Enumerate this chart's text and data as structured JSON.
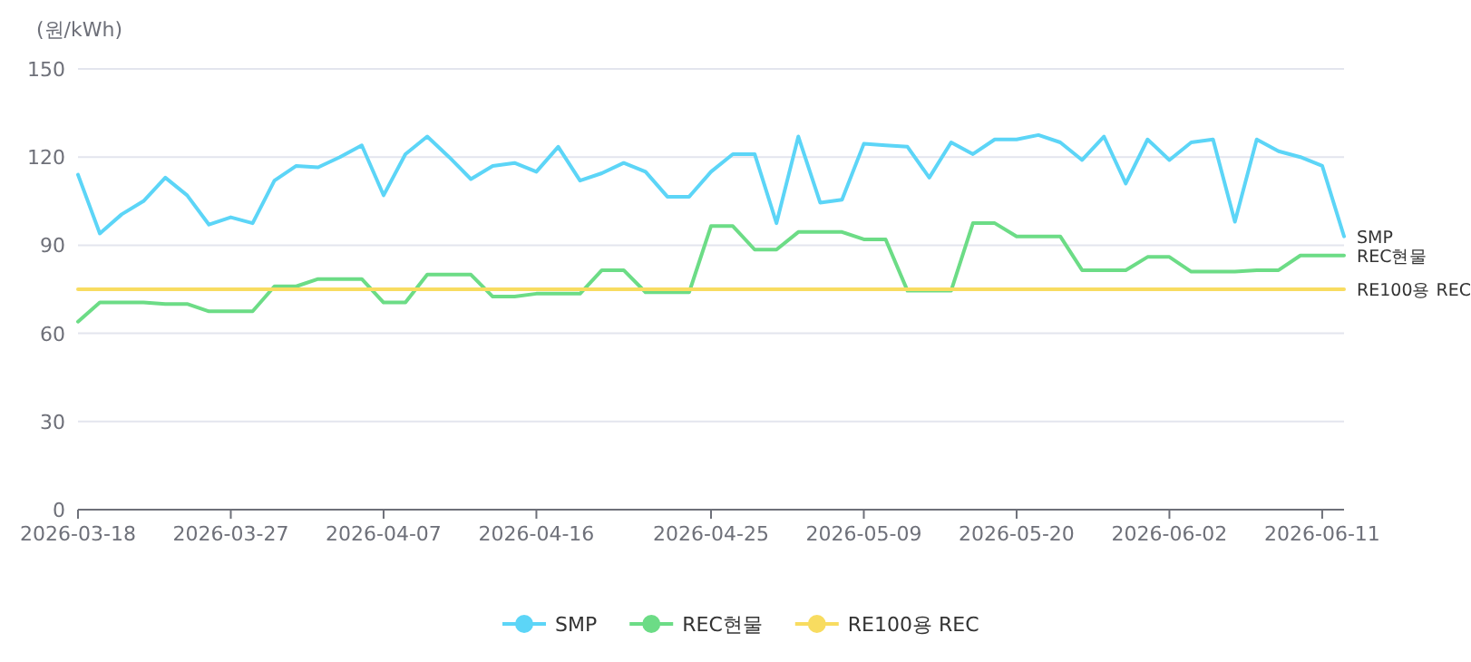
{
  "chart_data": {
    "type": "line",
    "ylabel": "(원/kWh)",
    "categories": [
      "2026-03-18",
      null,
      null,
      null,
      null,
      null,
      null,
      "2026-03-27",
      null,
      null,
      null,
      null,
      null,
      null,
      "2026-04-07",
      null,
      null,
      null,
      null,
      null,
      null,
      "2026-04-16",
      null,
      null,
      null,
      null,
      null,
      null,
      null,
      "2026-04-25",
      null,
      null,
      null,
      null,
      null,
      null,
      "2026-05-09",
      null,
      null,
      null,
      null,
      null,
      null,
      "2026-05-20",
      null,
      null,
      null,
      null,
      null,
      null,
      "2026-06-02",
      null,
      null,
      null,
      null,
      null,
      null,
      "2026-06-11",
      null
    ],
    "series": [
      {
        "name": "SMP",
        "color": "#5cd5f7",
        "values": [
          114,
          94,
          100.5,
          105,
          113,
          107,
          97,
          99.5,
          97.5,
          112,
          117,
          116.5,
          120,
          124,
          107,
          121,
          127,
          120,
          112.5,
          117,
          118,
          115,
          123.5,
          112,
          114.5,
          118,
          115,
          106.5,
          106.5,
          115,
          121,
          121,
          97.5,
          127,
          104.5,
          105.5,
          124.5,
          124,
          123.5,
          113,
          125,
          121,
          126,
          126,
          127.5,
          125,
          119,
          127,
          111,
          126,
          119,
          125,
          126,
          98,
          126,
          122,
          120,
          117,
          93
        ]
      },
      {
        "name": "REC현물",
        "color": "#6cdc86",
        "values": [
          64,
          70.5,
          70.5,
          70.5,
          70,
          70,
          67.5,
          67.5,
          67.5,
          76,
          76,
          78.5,
          78.5,
          78.5,
          70.5,
          70.5,
          80,
          80,
          80,
          72.5,
          72.5,
          73.5,
          73.5,
          73.5,
          81.5,
          81.5,
          74,
          74,
          74,
          96.5,
          96.5,
          88.5,
          88.5,
          94.5,
          94.5,
          94.5,
          92,
          92,
          74.5,
          74.5,
          74.5,
          97.5,
          97.5,
          93,
          93,
          93,
          81.5,
          81.5,
          81.5,
          86,
          86,
          81,
          81,
          81,
          81.5,
          81.5,
          86.5,
          86.5,
          86.5
        ]
      },
      {
        "name": "RE100용 REC",
        "color": "#f8dc60",
        "values": [
          75,
          75,
          75,
          75,
          75,
          75,
          75,
          75,
          75,
          75,
          75,
          75,
          75,
          75,
          75,
          75,
          75,
          75,
          75,
          75,
          75,
          75,
          75,
          75,
          75,
          75,
          75,
          75,
          75,
          75,
          75,
          75,
          75,
          75,
          75,
          75,
          75,
          75,
          75,
          75,
          75,
          75,
          75,
          75,
          75,
          75,
          75,
          75,
          75,
          75,
          75,
          75,
          75,
          75,
          75,
          75,
          75,
          75,
          75
        ]
      }
    ],
    "ylim": [
      0,
      150
    ],
    "yticks": [
      0,
      30,
      60,
      90,
      120,
      150
    ],
    "grid": "y",
    "legend": "bottom"
  }
}
